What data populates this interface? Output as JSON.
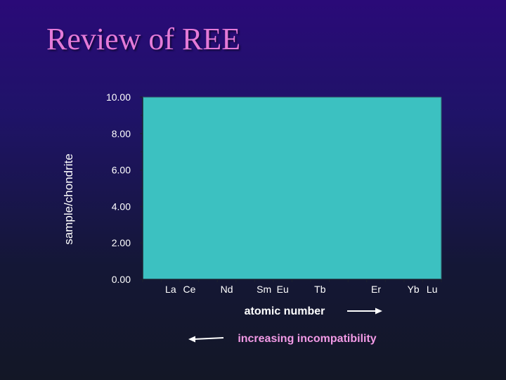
{
  "slide": {
    "title": "Review of REE",
    "annotation_atomic": "atomic number",
    "annotation_incompat": "increasing incompatibility"
  },
  "colors": {
    "background_top": "#2a0a78",
    "background_bottom": "#131726",
    "title": "#e47ad8",
    "plot_area": "#3cc1c1",
    "text": "#ffffff",
    "annotation_pink": "#f29ae6"
  },
  "chart_data": {
    "type": "line",
    "title": "",
    "xlabel": "",
    "ylabel": "sample/chondrite",
    "ylim": [
      0,
      10
    ],
    "yticks": [
      0,
      2,
      4,
      6,
      8,
      10
    ],
    "ytick_labels": [
      "0.00",
      "2.00",
      "4.00",
      "6.00",
      "8.00",
      "10.00"
    ],
    "x_positions": 16,
    "x_labels": [
      {
        "label": "La",
        "position": 1
      },
      {
        "label": "Ce",
        "position": 2
      },
      {
        "label": "Nd",
        "position": 4
      },
      {
        "label": "Sm",
        "position": 6
      },
      {
        "label": "Eu",
        "position": 7
      },
      {
        "label": "Tb",
        "position": 9
      },
      {
        "label": "Er",
        "position": 12
      },
      {
        "label": "Yb",
        "position": 14
      },
      {
        "label": "Lu",
        "position": 15
      }
    ],
    "series": [],
    "grid": false,
    "legend": "none"
  }
}
